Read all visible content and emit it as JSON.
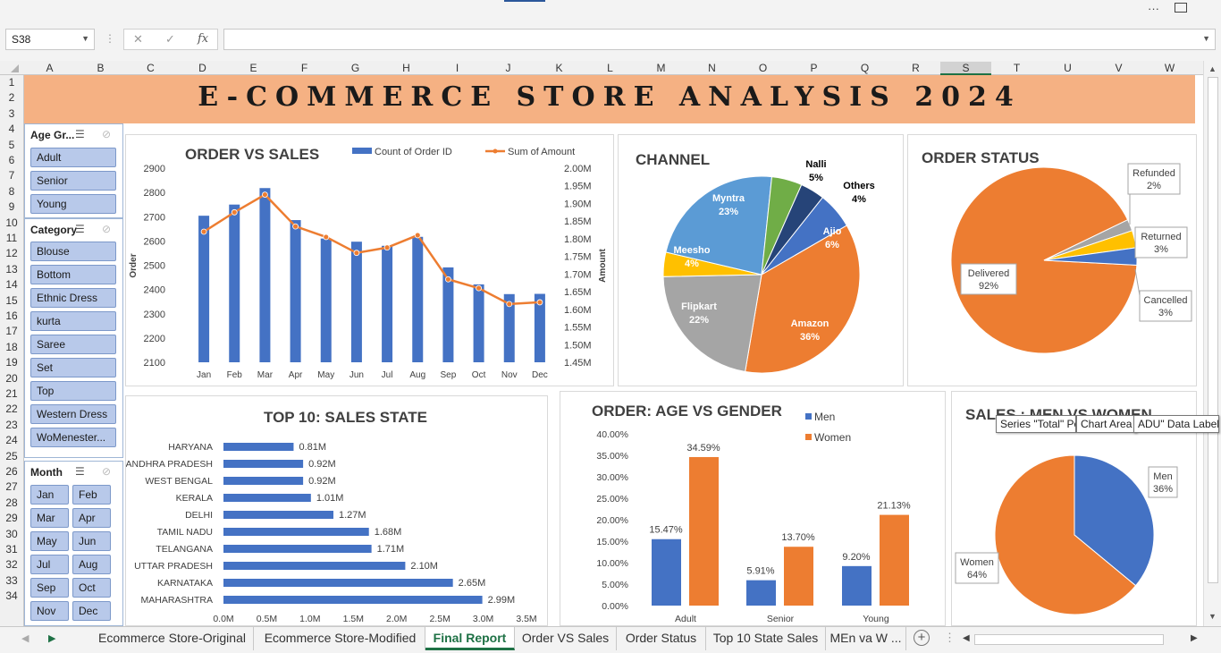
{
  "window": {
    "more": "···"
  },
  "formula_bar": {
    "cell_ref": "S38",
    "cancel": "✕",
    "enter": "✓",
    "fx": "fx",
    "value": ""
  },
  "columns": [
    "A",
    "B",
    "C",
    "D",
    "E",
    "F",
    "G",
    "H",
    "I",
    "J",
    "K",
    "L",
    "M",
    "N",
    "O",
    "P",
    "Q",
    "R",
    "S",
    "T",
    "U",
    "V",
    "W"
  ],
  "rows": [
    "1",
    "2",
    "3",
    "4",
    "5",
    "6",
    "7",
    "8",
    "9",
    "10",
    "11",
    "12",
    "13",
    "14",
    "15",
    "16",
    "17",
    "18",
    "19",
    "20",
    "21",
    "22",
    "23",
    "24",
    "25",
    "26",
    "27",
    "28",
    "29",
    "30",
    "31",
    "32",
    "33",
    "34"
  ],
  "banner": {
    "title": "E-COMMERCE STORE ANALYSIS 2024"
  },
  "slicers": {
    "age": {
      "header": "Age Gr...",
      "items": [
        "Adult",
        "Senior",
        "Young"
      ]
    },
    "category": {
      "header": "Category",
      "items": [
        "Blouse",
        "Bottom",
        "Ethnic Dress",
        "kurta",
        "Saree",
        "Set",
        "Top",
        "Western Dress",
        "WoMenester..."
      ]
    },
    "month": {
      "header": "Month",
      "items": [
        "Jan",
        "Feb",
        "Mar",
        "Apr",
        "May",
        "Jun",
        "Jul",
        "Aug",
        "Sep",
        "Oct",
        "Nov",
        "Dec"
      ]
    }
  },
  "charts": {
    "order_vs_sales": {
      "title": "ORDER VS SALES"
    },
    "channel": {
      "title": "CHANNEL"
    },
    "order_status": {
      "title": "ORDER STATUS"
    },
    "top10": {
      "title": "TOP 10: SALES STATE"
    },
    "age_gender": {
      "title": "ORDER: AGE VS GENDER"
    },
    "men_women": {
      "title": "SALES : MEN VS WOMEN"
    }
  },
  "tooltips": {
    "series": "Series \"Total\" Po",
    "chart_area": "Chart Area",
    "data_label": "ADU\" Data Label"
  },
  "sheet_tabs": [
    "Ecommerce Store-Original",
    "Ecommerce Store-Modified",
    "Final Report",
    "Order VS Sales",
    "Order Status",
    "Top 10 State Sales",
    "MEn va W ..."
  ],
  "active_tab": "Final Report",
  "colors": {
    "blue": "#4472c4",
    "orange": "#ed7d31",
    "gray": "#a5a5a5",
    "yellow": "#ffc000",
    "green": "#70ad47",
    "lightblue": "#5b9bd5",
    "navy": "#264478",
    "banner": "#f5b183"
  },
  "chart_data": [
    {
      "type": "bar",
      "chart": "order_vs_sales",
      "categories": [
        "Jan",
        "Feb",
        "Mar",
        "Apr",
        "May",
        "Jun",
        "Jul",
        "Aug",
        "Sep",
        "Oct",
        "Nov",
        "Dec"
      ],
      "series": [
        {
          "name": "Count of Order ID",
          "axis": "left",
          "values": [
            2704,
            2750,
            2818,
            2686,
            2610,
            2597,
            2580,
            2617,
            2491,
            2421,
            2381,
            2382
          ]
        },
        {
          "name": "Sum of Amount",
          "axis": "right",
          "type": "line",
          "values": [
            1.82,
            1.875,
            1.925,
            1.835,
            1.805,
            1.76,
            1.775,
            1.81,
            1.685,
            1.66,
            1.615,
            1.62
          ]
        }
      ],
      "ylabel": "Order",
      "y2label": "Amount",
      "ylim": [
        2100,
        2900
      ],
      "y2lim": [
        1.45,
        2.0
      ],
      "yticks": [
        "2100",
        "2200",
        "2300",
        "2400",
        "2500",
        "2600",
        "2700",
        "2800",
        "2900"
      ],
      "y2ticks": [
        "1.45M",
        "1.50M",
        "1.55M",
        "1.60M",
        "1.65M",
        "1.70M",
        "1.75M",
        "1.80M",
        "1.85M",
        "1.90M",
        "1.95M",
        "2.00M"
      ],
      "legend": "top"
    },
    {
      "type": "pie",
      "chart": "channel",
      "slices": [
        {
          "label": "Amazon",
          "value": 36,
          "text": "36%",
          "color": "#ed7d31"
        },
        {
          "label": "Flipkart",
          "value": 22,
          "text": "22%",
          "color": "#a5a5a5"
        },
        {
          "label": "Meesho",
          "value": 4,
          "text": "4%",
          "color": "#ffc000"
        },
        {
          "label": "Myntra",
          "value": 23,
          "text": "23%",
          "color": "#5b9bd5"
        },
        {
          "label": "Nalli",
          "value": 5,
          "text": "5%",
          "color": "#70ad47"
        },
        {
          "label": "Others",
          "value": 4,
          "text": "4%",
          "color": "#264478"
        },
        {
          "label": "Ajio",
          "value": 6,
          "text": "6%",
          "color": "#4472c4"
        }
      ]
    },
    {
      "type": "pie",
      "chart": "order_status",
      "slices": [
        {
          "label": "Delivered",
          "value": 92,
          "text": "92%",
          "color": "#ed7d31"
        },
        {
          "label": "Refunded",
          "value": 2,
          "text": "2%",
          "color": "#a5a5a5"
        },
        {
          "label": "Returned",
          "value": 3,
          "text": "3%",
          "color": "#ffc000"
        },
        {
          "label": "Cancelled",
          "value": 3,
          "text": "3%",
          "color": "#4472c4"
        }
      ]
    },
    {
      "type": "bar",
      "chart": "top10",
      "orientation": "horizontal",
      "categories": [
        "HARYANA",
        "ANDHRA PRADESH",
        "WEST BENGAL",
        "KERALA",
        "DELHI",
        "TAMIL NADU",
        "TELANGANA",
        "UTTAR PRADESH",
        "KARNATAKA",
        "MAHARASHTRA"
      ],
      "values": [
        0.81,
        0.92,
        0.92,
        1.01,
        1.27,
        1.68,
        1.71,
        2.1,
        2.65,
        2.99
      ],
      "labels": [
        "0.81M",
        "0.92M",
        "0.92M",
        "1.01M",
        "1.27M",
        "1.68M",
        "1.71M",
        "2.10M",
        "2.65M",
        "2.99M"
      ],
      "xlim": [
        0,
        3.5
      ],
      "xticks": [
        "0.0M",
        "0.5M",
        "1.0M",
        "1.5M",
        "2.0M",
        "2.5M",
        "3.0M",
        "3.5M"
      ]
    },
    {
      "type": "bar",
      "chart": "age_gender",
      "categories": [
        "Adult",
        "Senior",
        "Young"
      ],
      "series": [
        {
          "name": "Men",
          "values": [
            15.47,
            5.91,
            9.2
          ],
          "labels": [
            "15.47%",
            "5.91%",
            "9.20%"
          ],
          "color": "#4472c4"
        },
        {
          "name": "Women",
          "values": [
            34.59,
            13.7,
            21.13
          ],
          "labels": [
            "34.59%",
            "13.70%",
            "21.13%"
          ],
          "color": "#ed7d31"
        }
      ],
      "ylim": [
        0,
        40
      ],
      "yticks": [
        "0.00%",
        "5.00%",
        "10.00%",
        "15.00%",
        "20.00%",
        "25.00%",
        "30.00%",
        "35.00%",
        "40.00%"
      ],
      "legend": "top-right"
    },
    {
      "type": "pie",
      "chart": "men_women",
      "slices": [
        {
          "label": "Men",
          "value": 36,
          "text": "36%",
          "color": "#4472c4"
        },
        {
          "label": "Women",
          "value": 64,
          "text": "64%",
          "color": "#ed7d31"
        }
      ]
    }
  ]
}
